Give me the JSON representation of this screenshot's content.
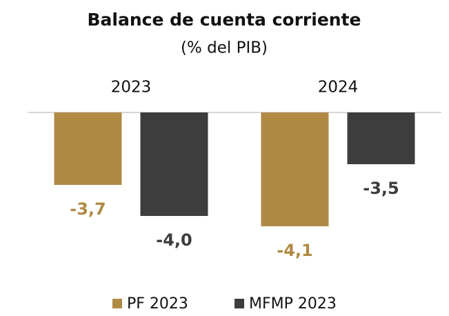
{
  "chart_data": {
    "type": "bar",
    "title": "Balance de cuenta corriente",
    "subtitle": "(% del PIB)",
    "categories": [
      "2023",
      "2024"
    ],
    "series": [
      {
        "name": "PF 2023",
        "color": "#b08a45",
        "values": [
          -3.7,
          -4.1
        ],
        "value_labels": [
          "-3,7",
          "-4,1"
        ]
      },
      {
        "name": "MFMP 2023",
        "color": "#3d3d3d",
        "values": [
          -4.0,
          -3.5
        ],
        "value_labels": [
          "-4,0",
          "-3,5"
        ]
      }
    ],
    "ylim": [
      -4.5,
      -3
    ],
    "legend": "bottom"
  }
}
